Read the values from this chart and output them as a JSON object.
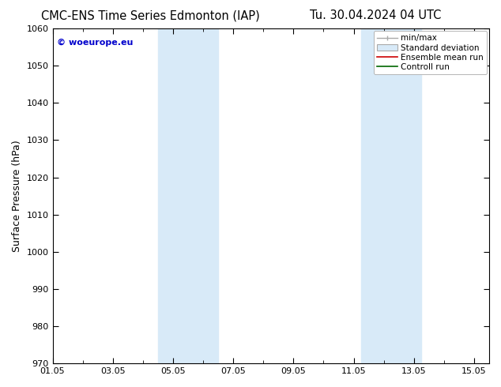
{
  "title_left": "CMC-ENS Time Series Edmonton (IAP)",
  "title_right": "Tu. 30.04.2024 04 UTC",
  "ylabel": "Surface Pressure (hPa)",
  "ylim": [
    970,
    1060
  ],
  "yticks": [
    970,
    980,
    990,
    1000,
    1010,
    1020,
    1030,
    1040,
    1050,
    1060
  ],
  "xlim_start_days": 0,
  "xlim_end_days": 14.5,
  "xtick_labels": [
    "01.05",
    "03.05",
    "05.05",
    "07.05",
    "09.05",
    "11.05",
    "13.05",
    "15.05"
  ],
  "xtick_positions_days": [
    0,
    2,
    4,
    6,
    8,
    10,
    12,
    14
  ],
  "shaded_bands": [
    {
      "start_day": 3.5,
      "end_day": 5.5
    },
    {
      "start_day": 10.25,
      "end_day": 12.25
    }
  ],
  "shade_color": "#d8eaf8",
  "shade_alpha": 1.0,
  "watermark": "© woeurope.eu",
  "watermark_color": "#0000cc",
  "legend_entries": [
    "min/max",
    "Standard deviation",
    "Ensemble mean run",
    "Controll run"
  ],
  "legend_line_colors": [
    "#aaaaaa",
    "#cccccc",
    "#cc0000",
    "#006600"
  ],
  "background_color": "#ffffff",
  "plot_bg_color": "#ffffff",
  "title_fontsize": 10.5,
  "axis_label_fontsize": 9,
  "tick_fontsize": 8,
  "legend_fontsize": 7.5
}
